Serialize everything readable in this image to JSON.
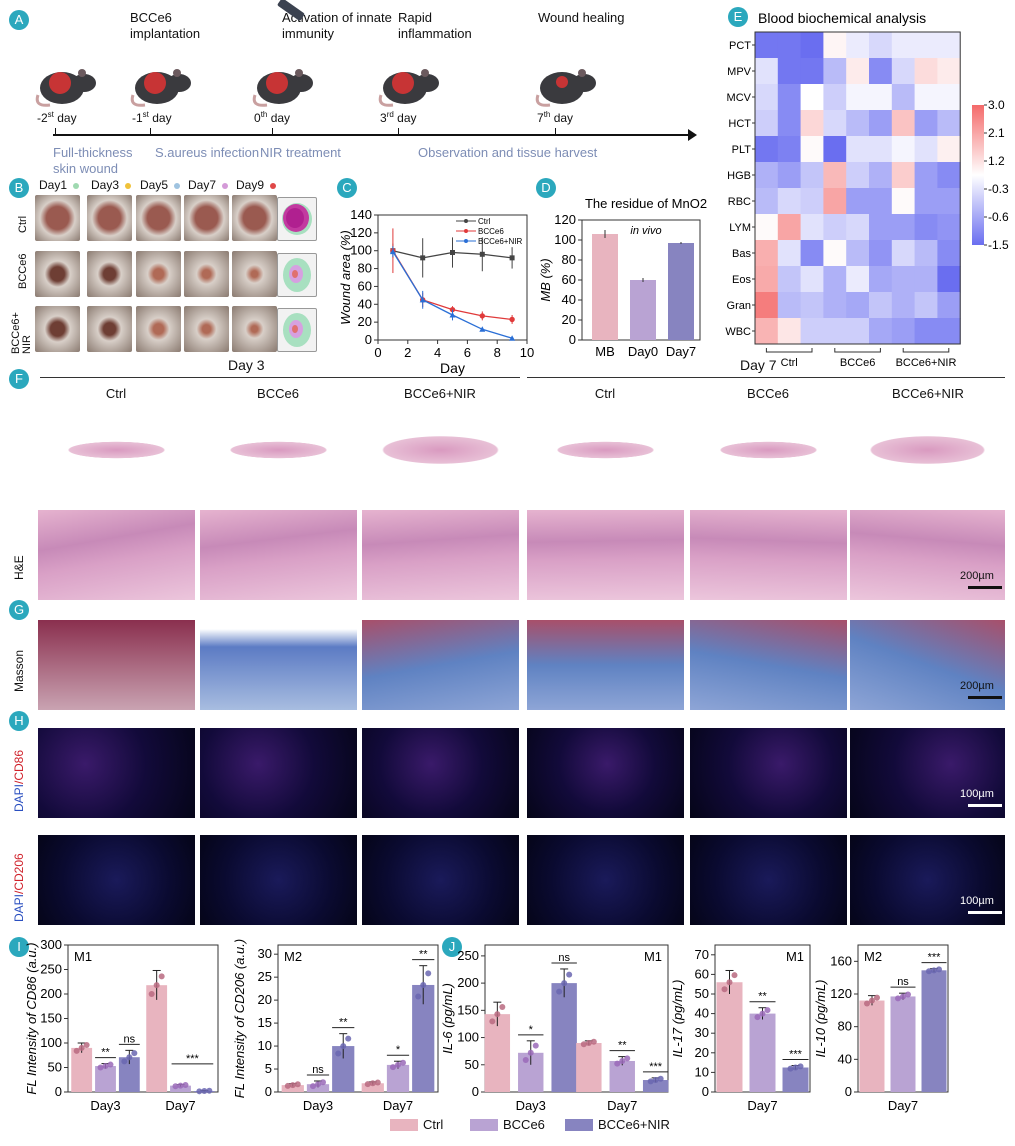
{
  "panels": {
    "a": "A",
    "b": "B",
    "c": "C",
    "d": "D",
    "e": "E",
    "f": "F",
    "g": "G",
    "h": "H",
    "i": "I",
    "j": "J"
  },
  "timeline": {
    "events": [
      {
        "title": "",
        "day": "-2",
        "sup": "st",
        "suffix": " day",
        "below": "Full-thickness skin wound"
      },
      {
        "title": "BCCe6 implantation",
        "day": "-1",
        "sup": "st",
        "suffix": " day",
        "below": "S.aureus infection"
      },
      {
        "title": "Activation of innate immunity",
        "day": "0",
        "sup": "th",
        "suffix": " day",
        "below": "NIR treatment"
      },
      {
        "title": "Rapid inflammation",
        "day": "3",
        "sup": "rd",
        "suffix": " day",
        "below": "Observation and tissue harvest"
      },
      {
        "title": "Wound healing",
        "day": "7",
        "sup": "th",
        "suffix": " day",
        "below": ""
      }
    ]
  },
  "photos": {
    "days": [
      "Day1",
      "Day3",
      "Day5",
      "Day7",
      "Day9"
    ],
    "day_colors": [
      "#9fd9b0",
      "#f0c23a",
      "#9fc3e0",
      "#d49ad8",
      "#e04848"
    ],
    "groups": [
      "Ctrl",
      "BCCe6",
      "BCCe6+ NIR"
    ]
  },
  "histology": {
    "day3": "Day 3",
    "day7": "Day 7",
    "columns": [
      "Ctrl",
      "BCCe6",
      "BCCe6+NIR",
      "Ctrl",
      "BCCe6",
      "BCCe6+NIR"
    ],
    "rows": {
      "he": "H&E",
      "masson": "Masson",
      "cd86_a": "DAPI",
      "cd86_b": "/CD86",
      "cd206_a": "DAPI",
      "cd206_b": "/CD206"
    },
    "scale_200": "200µm",
    "scale_100": "100µm"
  },
  "legend": {
    "items": [
      "Ctrl",
      "BCCe6",
      "BCCe6+NIR"
    ],
    "colors": [
      "#e8b4bf",
      "#b9a3d3",
      "#8784c0"
    ]
  },
  "chart_data": [
    {
      "id": "C",
      "type": "line",
      "title": "",
      "xlabel": "Day",
      "ylabel": "Wound area (%)",
      "xlim": [
        0,
        10
      ],
      "ylim": [
        0,
        140
      ],
      "xticks": [
        0,
        2,
        4,
        6,
        8,
        10
      ],
      "yticks": [
        0,
        20,
        40,
        60,
        80,
        100,
        120,
        140
      ],
      "legend_position": "top-right",
      "x": [
        1,
        3,
        5,
        7,
        9
      ],
      "series": [
        {
          "name": "Ctrl",
          "color": "#444444",
          "marker": "square",
          "values": [
            100,
            92,
            98,
            96,
            92
          ],
          "errors": [
            8,
            22,
            17,
            19,
            12
          ]
        },
        {
          "name": "BCCe6",
          "color": "#e03a3a",
          "marker": "circle",
          "values": [
            100,
            45,
            34,
            27,
            23
          ],
          "errors": [
            25,
            8,
            4,
            5,
            5
          ]
        },
        {
          "name": "BCCe6+NIR",
          "color": "#2a6fd6",
          "marker": "triangle",
          "values": [
            99,
            45,
            28,
            12,
            2
          ],
          "errors": [
            6,
            10,
            6,
            1,
            1
          ]
        }
      ]
    },
    {
      "id": "D",
      "type": "bar",
      "title": "The residue of MnO2",
      "annotation": "in vivo",
      "ylabel": "MB (%)",
      "ylim": [
        0,
        120
      ],
      "yticks": [
        0,
        20,
        40,
        60,
        80,
        100,
        120
      ],
      "categories": [
        "MB",
        "Day0",
        "Day7"
      ],
      "values": [
        106,
        60,
        97
      ],
      "errors": [
        4,
        2,
        1
      ],
      "colors": [
        "#e8b4bf",
        "#b9a3d3",
        "#8784c0"
      ]
    },
    {
      "id": "E",
      "type": "heatmap",
      "title": "Blood biochemical analysis",
      "rows": [
        "PCT",
        "MPV",
        "MCV",
        "HCT",
        "PLT",
        "HGB",
        "RBC",
        "LYM",
        "Bas",
        "Eos",
        "Gran",
        "WBC"
      ],
      "groups": [
        "Ctrl",
        "BCCe6",
        "BCCe6+NIR"
      ],
      "colorbar_ticks": [
        "3.0",
        "2.1",
        "1.2",
        "-0.3",
        "-0.6",
        "-1.5"
      ],
      "range": [
        -1.5,
        3.0
      ],
      "values": [
        [
          -1.4,
          -1.4,
          -1.5,
          0.2,
          -0.2,
          -0.4,
          -0.2,
          -0.2,
          -0.2
        ],
        [
          -0.3,
          -1.4,
          -1.4,
          -0.7,
          0.4,
          -1.2,
          -0.4,
          0.7,
          0.4
        ],
        [
          -0.4,
          -1.2,
          0,
          -0.5,
          -0.1,
          -0.1,
          -0.7,
          -0.1,
          -0.1
        ],
        [
          -0.5,
          -1.2,
          0.8,
          -0.4,
          -0.7,
          -1.0,
          1.2,
          -1.0,
          -0.7
        ],
        [
          -1.4,
          -1.3,
          0.1,
          -1.5,
          -0.3,
          -0.3,
          -0.1,
          -0.3,
          0.3
        ],
        [
          -0.8,
          -1.0,
          -0.6,
          1.4,
          -0.5,
          -0.8,
          1.0,
          -1.0,
          -1.2
        ],
        [
          -0.7,
          -0.4,
          -0.5,
          1.8,
          -1.0,
          -1.0,
          0.1,
          -1.0,
          -1.0
        ],
        [
          0.1,
          1.8,
          -0.3,
          -0.5,
          -0.4,
          -1.0,
          -1.0,
          -1.2,
          -1.1
        ],
        [
          1.6,
          -0.3,
          -1.2,
          0.1,
          -0.7,
          -1.1,
          -0.4,
          -0.7,
          -1.2
        ],
        [
          1.7,
          -0.6,
          -0.3,
          -0.8,
          -0.2,
          -0.9,
          -0.8,
          -0.8,
          -1.5
        ],
        [
          2.6,
          -0.7,
          -0.6,
          -0.8,
          -0.9,
          -0.6,
          -0.8,
          -0.6,
          -1.0
        ],
        [
          1.5,
          0.5,
          -0.5,
          -0.5,
          -0.5,
          -0.9,
          -1.0,
          -1.2,
          -1.2
        ]
      ]
    },
    {
      "id": "I1",
      "type": "bar",
      "tag": "M1",
      "ylabel": "FL Intensity of CD86 (a.u.)",
      "ylim": [
        0,
        300
      ],
      "yticks": [
        0,
        50,
        100,
        150,
        200,
        250,
        300
      ],
      "categories": [
        "Day3",
        "Day7"
      ],
      "series": [
        {
          "name": "Ctrl",
          "values": [
            90,
            218
          ],
          "errors": [
            10,
            30
          ]
        },
        {
          "name": "BCCe6",
          "values": [
            53,
            13
          ],
          "errors": [
            5,
            2
          ]
        },
        {
          "name": "BCCe6+NIR",
          "values": [
            71,
            2
          ],
          "errors": [
            14,
            1
          ]
        }
      ],
      "significance": [
        [
          "**",
          "ns"
        ],
        [
          "***"
        ]
      ]
    },
    {
      "id": "I2",
      "type": "bar",
      "tag": "M2",
      "ylabel": "FL Intensity of CD206 (a.u.)",
      "ylim": [
        0,
        32
      ],
      "yticks": [
        0,
        5,
        10,
        15,
        20,
        25,
        30
      ],
      "categories": [
        "Day3",
        "Day7"
      ],
      "series": [
        {
          "name": "Ctrl",
          "values": [
            1.5,
            1.9
          ],
          "errors": [
            0.3,
            0.3
          ]
        },
        {
          "name": "BCCe6",
          "values": [
            1.7,
            5.9
          ],
          "errors": [
            0.7,
            0.8
          ]
        },
        {
          "name": "BCCe6+NIR",
          "values": [
            10,
            23.3
          ],
          "errors": [
            2.7,
            4.2
          ]
        }
      ],
      "significance": [
        [
          "ns",
          "**"
        ],
        [
          "*",
          "**"
        ]
      ]
    },
    {
      "id": "J1",
      "type": "bar",
      "tag": "M1",
      "ylabel": "IL-6 (pg/mL)",
      "ylim": [
        0,
        270
      ],
      "yticks": [
        0,
        50,
        100,
        150,
        200,
        250
      ],
      "categories": [
        "Day3",
        "Day7"
      ],
      "series": [
        {
          "name": "Ctrl",
          "values": [
            143,
            90
          ],
          "errors": [
            22,
            4
          ]
        },
        {
          "name": "BCCe6",
          "values": [
            72,
            57
          ],
          "errors": [
            22,
            8
          ]
        },
        {
          "name": "BCCe6+NIR",
          "values": [
            200,
            22
          ],
          "errors": [
            26,
            4
          ]
        }
      ],
      "significance": [
        [
          "*",
          "ns"
        ],
        [
          "**",
          "***"
        ]
      ]
    },
    {
      "id": "J2",
      "type": "bar",
      "tag": "M1",
      "ylabel": "IL-17 (pg/mL)",
      "ylim": [
        0,
        75
      ],
      "yticks": [
        0,
        10,
        20,
        30,
        40,
        50,
        60,
        70
      ],
      "categories": [
        "Day7"
      ],
      "series": [
        {
          "name": "Ctrl",
          "values": [
            56
          ],
          "errors": [
            6
          ]
        },
        {
          "name": "BCCe6",
          "values": [
            40
          ],
          "errors": [
            3
          ]
        },
        {
          "name": "BCCe6+NIR",
          "values": [
            12.5
          ],
          "errors": [
            1
          ]
        }
      ],
      "significance": [
        [
          "**",
          "***"
        ]
      ]
    },
    {
      "id": "J3",
      "type": "bar",
      "tag": "M2",
      "ylabel": "IL-10 (pg/mL)",
      "ylim": [
        0,
        180
      ],
      "yticks": [
        0,
        40,
        80,
        120,
        160
      ],
      "categories": [
        "Day7"
      ],
      "series": [
        {
          "name": "Ctrl",
          "values": [
            112
          ],
          "errors": [
            6
          ]
        },
        {
          "name": "BCCe6",
          "values": [
            117
          ],
          "errors": [
            4
          ]
        },
        {
          "name": "BCCe6+NIR",
          "values": [
            149
          ],
          "errors": [
            2
          ]
        }
      ],
      "significance": [
        [
          "ns",
          "***"
        ]
      ]
    }
  ]
}
